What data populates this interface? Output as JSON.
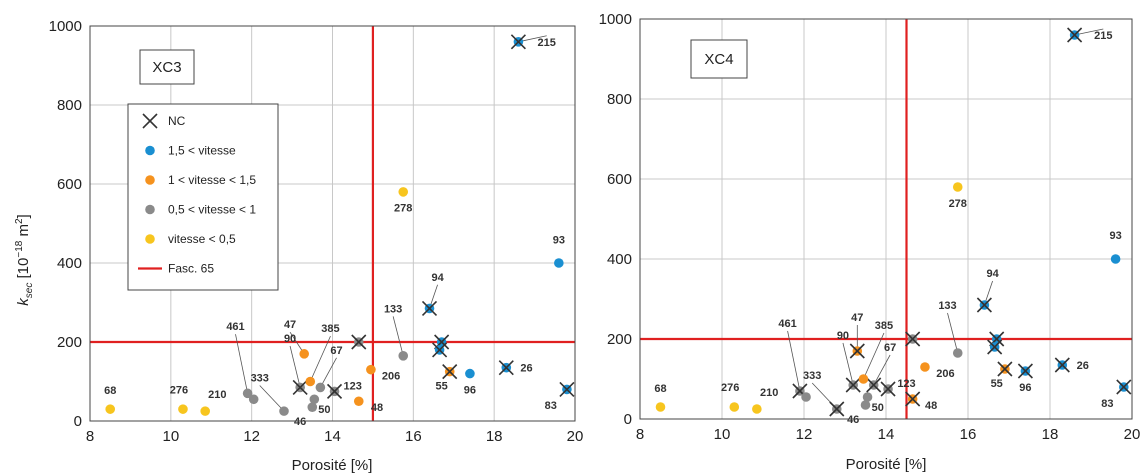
{
  "colors": {
    "nc": "#333333",
    "fast": "#1a8fd1",
    "medium": "#f5921e",
    "slow": "#8a8a8a",
    "veryslow": "#f7c51e",
    "threshold": "#e02020",
    "grid": "#c8c8c8"
  },
  "chart_data": [
    {
      "type": "scatter",
      "title": "XC3",
      "xlabel": "Porosité [%]",
      "ylabel_main": "k",
      "ylabel_sub": "sec",
      "ylabel_unit": "[10",
      "ylabel_exp": "−18",
      "ylabel_tail": " m",
      "ylabel_sq": "2",
      "ylabel_close": "]",
      "xlim": [
        8,
        20
      ],
      "ylim": [
        0,
        1000
      ],
      "xticks": [
        "8",
        "10",
        "12",
        "14",
        "16",
        "18",
        "20"
      ],
      "yticks": [
        "0",
        "200",
        "400",
        "600",
        "800",
        "1000"
      ],
      "threshold_x": 15,
      "threshold_y": 200,
      "legend": {
        "placement": "upper-left",
        "items": [
          {
            "key": "nc",
            "label": "NC"
          },
          {
            "key": "fast",
            "label": "1,5 < vitesse"
          },
          {
            "key": "medium",
            "label": "1 < vitesse < 1,5"
          },
          {
            "key": "slow",
            "label": "0,5 < vitesse < 1"
          },
          {
            "key": "veryslow",
            "label": "vitesse < 0,5"
          },
          {
            "key": "threshold",
            "label": "Fasc. 65"
          }
        ]
      },
      "points": [
        {
          "label": "68",
          "x": 8.5,
          "y": 30,
          "cls": "veryslow",
          "nc": false,
          "lx": 8.5,
          "ly": 68
        },
        {
          "label": "276",
          "x": 10.3,
          "y": 30,
          "cls": "veryslow",
          "nc": false,
          "lx": 10.2,
          "ly": 70
        },
        {
          "label": "210",
          "x": 10.85,
          "y": 25,
          "cls": "veryslow",
          "nc": false,
          "lx": 11.15,
          "ly": 58
        },
        {
          "label": "278",
          "x": 15.75,
          "y": 580,
          "cls": "veryslow",
          "nc": false,
          "lx": 15.75,
          "ly": 530
        },
        {
          "label": "461",
          "x": 11.9,
          "y": 70,
          "cls": "slow",
          "nc": false,
          "lx": 11.6,
          "ly": 230
        },
        {
          "label": "",
          "x": 12.05,
          "y": 55,
          "cls": "slow",
          "nc": false
        },
        {
          "label": "333",
          "x": 12.8,
          "y": 25,
          "cls": "slow",
          "nc": false,
          "lx": 12.2,
          "ly": 100
        },
        {
          "label": "90",
          "x": 13.2,
          "y": 85,
          "cls": "slow",
          "nc": true,
          "lx": 12.95,
          "ly": 200
        },
        {
          "label": "46",
          "x": 13.5,
          "y": 35,
          "cls": "slow",
          "nc": false,
          "lx": 13.2,
          "ly": -10
        },
        {
          "label": "50",
          "x": 13.55,
          "y": 55,
          "cls": "slow",
          "nc": false,
          "lx": 13.8,
          "ly": 20
        },
        {
          "label": "67",
          "x": 13.7,
          "y": 85,
          "cls": "slow",
          "nc": false,
          "lx": 14.1,
          "ly": 170
        },
        {
          "label": "123",
          "x": 14.05,
          "y": 75,
          "cls": "slow",
          "nc": true,
          "lx": 14.5,
          "ly": 80
        },
        {
          "label": "",
          "x": 14.65,
          "y": 200,
          "cls": "slow",
          "nc": true
        },
        {
          "label": "133",
          "x": 15.75,
          "y": 165,
          "cls": "slow",
          "nc": false,
          "lx": 15.5,
          "ly": 275
        },
        {
          "label": "47",
          "x": 13.3,
          "y": 170,
          "cls": "medium",
          "nc": false,
          "lx": 12.95,
          "ly": 235
        },
        {
          "label": "385",
          "x": 13.45,
          "y": 100,
          "cls": "medium",
          "nc": false,
          "lx": 13.95,
          "ly": 225
        },
        {
          "label": "206",
          "x": 14.95,
          "y": 130,
          "cls": "medium",
          "nc": false,
          "lx": 15.45,
          "ly": 105
        },
        {
          "label": "48",
          "x": 14.65,
          "y": 50,
          "cls": "medium",
          "nc": false,
          "lx": 15.1,
          "ly": 25
        },
        {
          "label": "55",
          "x": 16.9,
          "y": 125,
          "cls": "medium",
          "nc": true,
          "lx": 16.7,
          "ly": 80
        },
        {
          "label": "94",
          "x": 16.4,
          "y": 285,
          "cls": "fast",
          "nc": true,
          "lx": 16.6,
          "ly": 355
        },
        {
          "label": "",
          "x": 16.7,
          "y": 200,
          "cls": "fast",
          "nc": true
        },
        {
          "label": "",
          "x": 16.65,
          "y": 180,
          "cls": "fast",
          "nc": true
        },
        {
          "label": "96",
          "x": 17.4,
          "y": 120,
          "cls": "fast",
          "nc": false,
          "lx": 17.4,
          "ly": 70
        },
        {
          "label": "26",
          "x": 18.3,
          "y": 135,
          "cls": "fast",
          "nc": true,
          "lx": 18.8,
          "ly": 125
        },
        {
          "label": "93",
          "x": 19.6,
          "y": 400,
          "cls": "fast",
          "nc": false,
          "lx": 19.6,
          "ly": 450
        },
        {
          "label": "215",
          "x": 18.6,
          "y": 960,
          "cls": "fast",
          "nc": true,
          "lx": 19.3,
          "ly": 950
        },
        {
          "label": "83",
          "x": 19.8,
          "y": 80,
          "cls": "fast",
          "nc": true,
          "lx": 19.4,
          "ly": 30
        }
      ]
    },
    {
      "type": "scatter",
      "title": "XC4",
      "xlabel": "Porosité [%]",
      "xlim": [
        8,
        20
      ],
      "ylim": [
        0,
        1000
      ],
      "xticks": [
        "8",
        "10",
        "12",
        "14",
        "16",
        "18",
        "20"
      ],
      "yticks": [
        "0",
        "200",
        "400",
        "600",
        "800",
        "1000"
      ],
      "threshold_x": 14.5,
      "threshold_y": 200,
      "points": [
        {
          "label": "68",
          "x": 8.5,
          "y": 30,
          "cls": "veryslow",
          "nc": false,
          "lx": 8.5,
          "ly": 68
        },
        {
          "label": "276",
          "x": 10.3,
          "y": 30,
          "cls": "veryslow",
          "nc": false,
          "lx": 10.2,
          "ly": 70
        },
        {
          "label": "210",
          "x": 10.85,
          "y": 25,
          "cls": "veryslow",
          "nc": false,
          "lx": 11.15,
          "ly": 58
        },
        {
          "label": "278",
          "x": 15.75,
          "y": 580,
          "cls": "veryslow",
          "nc": false,
          "lx": 15.75,
          "ly": 530
        },
        {
          "label": "461",
          "x": 11.9,
          "y": 70,
          "cls": "slow",
          "nc": true,
          "lx": 11.6,
          "ly": 230
        },
        {
          "label": "",
          "x": 12.05,
          "y": 55,
          "cls": "slow",
          "nc": false
        },
        {
          "label": "333",
          "x": 12.8,
          "y": 25,
          "cls": "slow",
          "nc": true,
          "lx": 12.2,
          "ly": 100
        },
        {
          "label": "90",
          "x": 13.2,
          "y": 85,
          "cls": "slow",
          "nc": true,
          "lx": 12.95,
          "ly": 200
        },
        {
          "label": "46",
          "x": 13.5,
          "y": 35,
          "cls": "slow",
          "nc": false,
          "lx": 13.2,
          "ly": -10
        },
        {
          "label": "50",
          "x": 13.55,
          "y": 55,
          "cls": "slow",
          "nc": false,
          "lx": 13.8,
          "ly": 20
        },
        {
          "label": "67",
          "x": 13.7,
          "y": 85,
          "cls": "slow",
          "nc": true,
          "lx": 14.1,
          "ly": 170
        },
        {
          "label": "123",
          "x": 14.05,
          "y": 75,
          "cls": "slow",
          "nc": true,
          "lx": 14.5,
          "ly": 80
        },
        {
          "label": "",
          "x": 14.65,
          "y": 200,
          "cls": "slow",
          "nc": true
        },
        {
          "label": "133",
          "x": 15.75,
          "y": 165,
          "cls": "slow",
          "nc": false,
          "lx": 15.5,
          "ly": 275
        },
        {
          "label": "47",
          "x": 13.3,
          "y": 170,
          "cls": "medium",
          "nc": true,
          "lx": 13.3,
          "ly": 245
        },
        {
          "label": "385",
          "x": 13.45,
          "y": 100,
          "cls": "medium",
          "nc": false,
          "lx": 13.95,
          "ly": 225
        },
        {
          "label": "206",
          "x": 14.95,
          "y": 130,
          "cls": "medium",
          "nc": false,
          "lx": 15.45,
          "ly": 105
        },
        {
          "label": "48",
          "x": 14.65,
          "y": 50,
          "cls": "medium",
          "nc": true,
          "lx": 15.1,
          "ly": 25
        },
        {
          "label": "55",
          "x": 16.9,
          "y": 125,
          "cls": "medium",
          "nc": true,
          "lx": 16.7,
          "ly": 80
        },
        {
          "label": "94",
          "x": 16.4,
          "y": 285,
          "cls": "fast",
          "nc": true,
          "lx": 16.6,
          "ly": 355
        },
        {
          "label": "",
          "x": 16.7,
          "y": 200,
          "cls": "fast",
          "nc": true
        },
        {
          "label": "",
          "x": 16.65,
          "y": 180,
          "cls": "fast",
          "nc": true
        },
        {
          "label": "96",
          "x": 17.4,
          "y": 120,
          "cls": "fast",
          "nc": true,
          "lx": 17.4,
          "ly": 70
        },
        {
          "label": "26",
          "x": 18.3,
          "y": 135,
          "cls": "fast",
          "nc": true,
          "lx": 18.8,
          "ly": 125
        },
        {
          "label": "93",
          "x": 19.6,
          "y": 400,
          "cls": "fast",
          "nc": false,
          "lx": 19.6,
          "ly": 450
        },
        {
          "label": "215",
          "x": 18.6,
          "y": 960,
          "cls": "fast",
          "nc": true,
          "lx": 19.3,
          "ly": 950
        },
        {
          "label": "83",
          "x": 19.8,
          "y": 80,
          "cls": "fast",
          "nc": true,
          "lx": 19.4,
          "ly": 30
        }
      ]
    }
  ]
}
